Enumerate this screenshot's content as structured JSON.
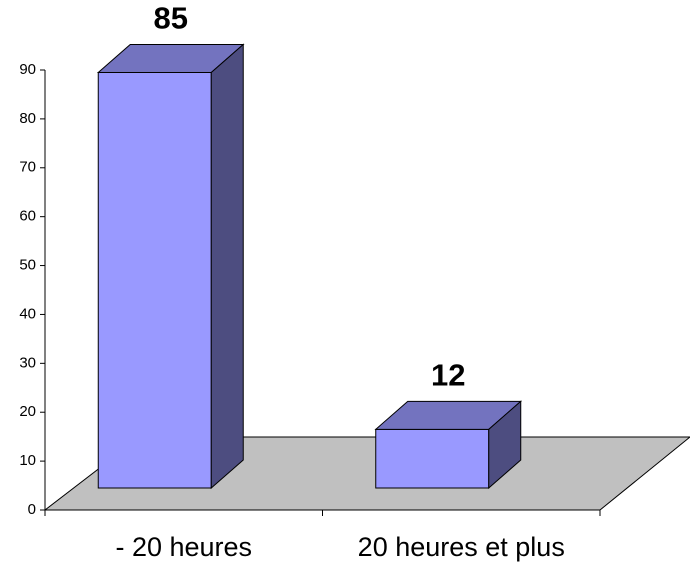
{
  "chart_data": {
    "type": "bar3d",
    "categories": [
      "- 20 heures",
      "20 heures et plus"
    ],
    "values": [
      85,
      12
    ],
    "color": "#9999ff",
    "ylim": [
      0,
      90
    ],
    "yticks": [
      0,
      10,
      20,
      30,
      40,
      50,
      60,
      70,
      80,
      90
    ]
  }
}
